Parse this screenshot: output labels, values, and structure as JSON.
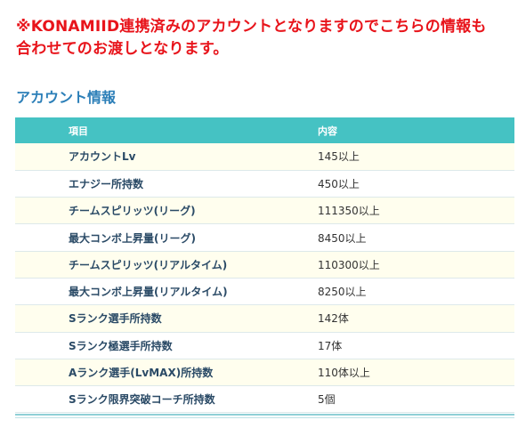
{
  "notice": {
    "line1": "※KONAMIID連携済みのアカウントとなりますのでこちらの情報も",
    "line2": "合わせてのお渡しとなります。"
  },
  "section": {
    "title": "アカウント情報"
  },
  "table": {
    "headers": [
      "項目",
      "内容"
    ],
    "rows": [
      {
        "label": "アカウントLv",
        "value": "145以上"
      },
      {
        "label": "エナジー所持数",
        "value": "450以上"
      },
      {
        "label": "チームスピリッツ(リーグ)",
        "value": "111350以上"
      },
      {
        "label": "最大コンボ上昇量(リーグ)",
        "value": "8450以上"
      },
      {
        "label": "チームスピリッツ(リアルタイム)",
        "value": "110300以上"
      },
      {
        "label": "最大コンボ上昇量(リアルタイム)",
        "value": "8250以上"
      },
      {
        "label": "Sランク選手所持数",
        "value": "142体"
      },
      {
        "label": "Sランク極選手所持数",
        "value": "17体"
      },
      {
        "label": "Aランク選手(LvMAX)所持数",
        "value": "110体以上"
      },
      {
        "label": "Sランク限界突破コーチ所持数",
        "value": "5個"
      }
    ]
  },
  "colors": {
    "notice": "#e8141b",
    "title": "#2c7fb8",
    "header_bg": "#45c2c3",
    "row_alt_bg": "#fffeee"
  }
}
